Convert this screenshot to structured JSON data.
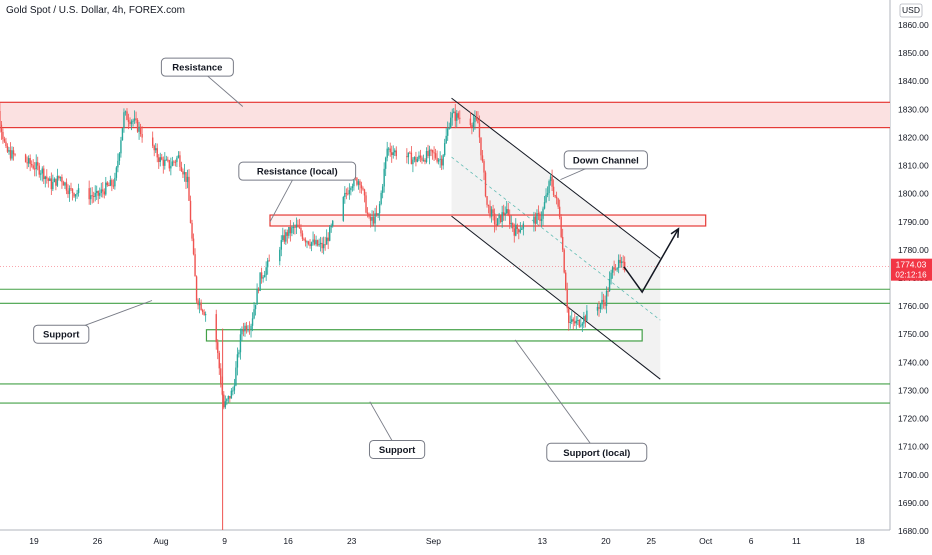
{
  "chart_data": {
    "type": "candlestick",
    "title": "Gold Spot / U.S. Dollar, 4h, FOREX.com",
    "currency": "USD",
    "y_axis": {
      "ylim": [
        1680,
        1870
      ],
      "ticks": [
        1680,
        1690,
        1700,
        1710,
        1720,
        1730,
        1740,
        1750,
        1760,
        1770,
        1780,
        1790,
        1800,
        1810,
        1820,
        1830,
        1840,
        1850,
        1860
      ],
      "tick_labels": [
        "1680.00",
        "1690.00",
        "1700.00",
        "1710.00",
        "1720.00",
        "1730.00",
        "1740.00",
        "1750.00",
        "1760.00",
        "1770.00",
        "1780.00",
        "1790.00",
        "1800.00",
        "1810.00",
        "1820.00",
        "1830.00",
        "1840.00",
        "1850.00",
        "1860.00"
      ]
    },
    "x_axis": {
      "start": "2021-07-14",
      "end": "2021-10-22",
      "ticks": [
        {
          "date": "2021-07-19",
          "label": "19"
        },
        {
          "date": "2021-07-26",
          "label": "26"
        },
        {
          "date": "2021-08-02",
          "label": "Aug"
        },
        {
          "date": "2021-08-09",
          "label": "9"
        },
        {
          "date": "2021-08-16",
          "label": "16"
        },
        {
          "date": "2021-08-23",
          "label": "23"
        },
        {
          "date": "2021-09-01",
          "label": "Sep"
        },
        {
          "date": "2021-09-13",
          "label": "13"
        },
        {
          "date": "2021-09-20",
          "label": "20"
        },
        {
          "date": "2021-09-25",
          "label": "25"
        },
        {
          "date": "2021-10-01",
          "label": "Oct"
        },
        {
          "date": "2021-10-06",
          "label": "6"
        },
        {
          "date": "2021-10-11",
          "label": "11"
        },
        {
          "date": "2021-10-18",
          "label": "18"
        }
      ]
    },
    "last_price": {
      "value": 1774.03,
      "label": "1774.03",
      "countdown": "02:12:16"
    },
    "price_path": [
      [
        "2021-07-14",
        1827
      ],
      [
        "2021-07-15",
        1832
      ],
      [
        "2021-07-16",
        1815
      ],
      [
        "2021-07-19",
        1810
      ],
      [
        "2021-07-20",
        1808
      ],
      [
        "2021-07-21",
        1803
      ],
      [
        "2021-07-22",
        1806
      ],
      [
        "2021-07-23",
        1801
      ],
      [
        "2021-07-26",
        1799
      ],
      [
        "2021-07-27",
        1802
      ],
      [
        "2021-07-28",
        1804
      ],
      [
        "2021-07-29",
        1828
      ],
      [
        "2021-07-30",
        1826
      ],
      [
        "2021-08-02",
        1812
      ],
      [
        "2021-08-03",
        1810
      ],
      [
        "2021-08-04",
        1813
      ],
      [
        "2021-08-05",
        1804
      ],
      [
        "2021-08-06",
        1763
      ],
      [
        "2021-08-08",
        1752
      ],
      [
        "2021-08-09",
        1724
      ],
      [
        "2021-08-10",
        1730
      ],
      [
        "2021-08-11",
        1752
      ],
      [
        "2021-08-12",
        1754
      ],
      [
        "2021-08-13",
        1770
      ],
      [
        "2021-08-16",
        1786
      ],
      [
        "2021-08-17",
        1788
      ],
      [
        "2021-08-18",
        1784
      ],
      [
        "2021-08-19",
        1782
      ],
      [
        "2021-08-20",
        1781
      ],
      [
        "2021-08-23",
        1804
      ],
      [
        "2021-08-24",
        1805
      ],
      [
        "2021-08-25",
        1790
      ],
      [
        "2021-08-26",
        1792
      ],
      [
        "2021-08-27",
        1816
      ],
      [
        "2021-08-30",
        1812
      ],
      [
        "2021-08-31",
        1813
      ],
      [
        "2021-09-01",
        1814
      ],
      [
        "2021-09-02",
        1812
      ],
      [
        "2021-09-03",
        1828
      ],
      [
        "2021-09-06",
        1825
      ],
      [
        "2021-09-07",
        1796
      ],
      [
        "2021-09-08",
        1789
      ],
      [
        "2021-09-09",
        1794
      ],
      [
        "2021-09-10",
        1787
      ],
      [
        "2021-09-13",
        1792
      ],
      [
        "2021-09-14",
        1805
      ],
      [
        "2021-09-15",
        1793
      ],
      [
        "2021-09-16",
        1754
      ],
      [
        "2021-09-17",
        1754
      ],
      [
        "2021-09-20",
        1762
      ],
      [
        "2021-09-21",
        1775
      ],
      [
        "2021-09-22",
        1774
      ]
    ],
    "zones": [
      {
        "name": "Resistance",
        "y1": 1823.5,
        "y2": 1832.5,
        "start": "2021-07-14",
        "end": "2021-10-22",
        "fill": "#fbe1e1",
        "stroke": "#e53935"
      },
      {
        "name": "Resistance (local)",
        "y1": 1788.5,
        "y2": 1792.4,
        "start": "2021-08-14",
        "end": "2021-10-01",
        "fill": "#fff3f3",
        "stroke": "#e53935"
      },
      {
        "name": "Support (local)",
        "y1": 1747.6,
        "y2": 1751.6,
        "start": "2021-08-07",
        "end": "2021-09-24",
        "fill": "#ffffff",
        "stroke": "#43a047"
      }
    ],
    "support_lines": [
      1766,
      1761,
      1732.3,
      1725.5
    ],
    "channel": {
      "upper": [
        [
          "2021-09-03",
          1834
        ],
        [
          "2021-09-26",
          1777
        ]
      ],
      "lower": [
        [
          "2021-09-03",
          1792
        ],
        [
          "2021-09-26",
          1734
        ]
      ],
      "mid": [
        [
          "2021-09-03",
          1813
        ],
        [
          "2021-09-26",
          1755
        ]
      ]
    },
    "projection": [
      [
        "2021-09-22",
        1774
      ],
      [
        "2021-09-24",
        1765
      ],
      [
        "2021-09-28",
        1787.5
      ]
    ],
    "annotations": [
      {
        "text": "Resistance",
        "date": "2021-08-06",
        "price": 1845
      },
      {
        "text": "Resistance (local)",
        "date": "2021-08-17",
        "price": 1808
      },
      {
        "text": "Down Channel",
        "date": "2021-09-20",
        "price": 1812
      },
      {
        "text": "Support",
        "date": "2021-07-22",
        "price": 1750
      },
      {
        "text": "Support",
        "date": "2021-08-28",
        "price": 1709
      },
      {
        "text": "Support (local)",
        "date": "2021-09-19",
        "price": 1708
      }
    ]
  },
  "colors": {
    "up": "#26a69a",
    "down": "#ef5350",
    "resistance": "#e53935",
    "support": "#43a047",
    "channel": "#131722",
    "channel_fill": "#f0f0f0",
    "axis_text": "#131722",
    "price_tag": "#f23645"
  }
}
